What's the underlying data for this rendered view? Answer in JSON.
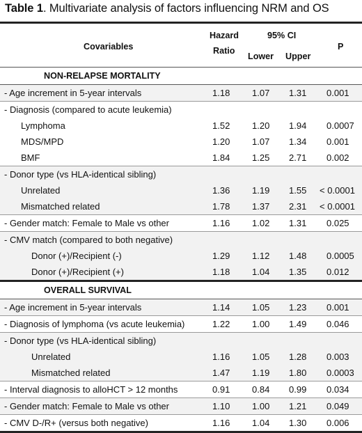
{
  "caption": {
    "label": "Table 1",
    "text": ". Multivariate analysis of factors influencing NRM and OS"
  },
  "header": {
    "covariables": "Covariables",
    "hazard_line1": "Hazard",
    "hazard_line2": "Ratio",
    "ci": "95% CI",
    "lower": "Lower",
    "upper": "Upper",
    "p": "P"
  },
  "sections": {
    "nrm": "NON-RELAPSE MORTALITY",
    "os": "OVERALL SURVIVAL"
  },
  "nrm_rows": [
    {
      "label": "- Age increment  in 5-year intervals",
      "hr": "1.18",
      "lower": "1.07",
      "upper": "1.31",
      "p": "0.001"
    },
    {
      "label": "- Diagnosis (compared to acute leukemia)",
      "hr": "",
      "lower": "",
      "upper": "",
      "p": ""
    },
    {
      "label": "Lymphoma",
      "hr": "1.52",
      "lower": "1.20",
      "upper": "1.94",
      "p": "0.0007"
    },
    {
      "label": "MDS/MPD",
      "hr": "1.20",
      "lower": "1.07",
      "upper": "1.34",
      "p": "0.001"
    },
    {
      "label": "BMF",
      "hr": "1.84",
      "lower": "1.25",
      "upper": "2.71",
      "p": "0.002"
    },
    {
      "label": "- Donor type (vs HLA-identical sibling)",
      "hr": "",
      "lower": "",
      "upper": "",
      "p": ""
    },
    {
      "label": "Unrelated",
      "hr": "1.36",
      "lower": "1.19",
      "upper": "1.55",
      "p": "< 0.0001"
    },
    {
      "label": "Mismatched related",
      "hr": "1.78",
      "lower": "1.37",
      "upper": "2.31",
      "p": "< 0.0001"
    },
    {
      "label": "- Gender match: Female to Male vs other",
      "hr": "1.16",
      "lower": "1.02",
      "upper": "1.31",
      "p": "0.025"
    },
    {
      "label": "- CMV match (compared to both negative)",
      "hr": "",
      "lower": "",
      "upper": "",
      "p": ""
    },
    {
      "label": "Donor (+)/Recipient (-)",
      "hr": "1.29",
      "lower": "1.12",
      "upper": "1.48",
      "p": "0.0005"
    },
    {
      "label": "Donor (+)/Recipient (+)",
      "hr": "1.18",
      "lower": "1.04",
      "upper": "1.35",
      "p": "0.012"
    }
  ],
  "os_rows": [
    {
      "label": "- Age increment in 5-year intervals",
      "hr": "1.14",
      "lower": "1.05",
      "upper": "1.23",
      "p": "0.001"
    },
    {
      "label": "- Diagnosis of lymphoma (vs acute leukemia)",
      "hr": "1.22",
      "lower": "1.00",
      "upper": "1.49",
      "p": "0.046"
    },
    {
      "label": "- Donor type (vs HLA-identical sibling)",
      "hr": "",
      "lower": "",
      "upper": "",
      "p": ""
    },
    {
      "label": "Unrelated",
      "hr": "1.16",
      "lower": "1.05",
      "upper": "1.28",
      "p": "0.003"
    },
    {
      "label": "Mismatched related",
      "hr": "1.47",
      "lower": "1.19",
      "upper": "1.80",
      "p": "0.0003"
    },
    {
      "label": "- Interval diagnosis to alloHCT > 12 months",
      "hr": "0.91",
      "lower": "0.84",
      "upper": "0.99",
      "p": "0.034"
    },
    {
      "label": "- Gender match: Female to Male vs other",
      "hr": "1.10",
      "lower": "1.00",
      "upper": "1.21",
      "p": "0.049"
    },
    {
      "label": "- CMV D-/R+ (versus both negative)",
      "hr": "1.16",
      "lower": "1.04",
      "upper": "1.30",
      "p": "0.006"
    }
  ]
}
